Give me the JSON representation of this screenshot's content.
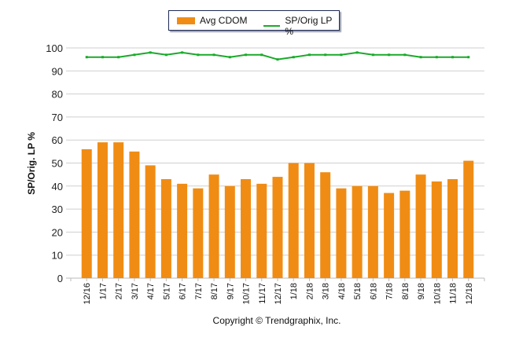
{
  "chart_data": {
    "type": "bar",
    "categories": [
      "12/16",
      "1/17",
      "2/17",
      "3/17",
      "4/17",
      "5/17",
      "6/17",
      "7/17",
      "8/17",
      "9/17",
      "10/17",
      "11/17",
      "12/17",
      "1/18",
      "2/18",
      "3/18",
      "4/18",
      "5/18",
      "6/18",
      "7/18",
      "8/18",
      "9/18",
      "10/18",
      "11/18",
      "12/18"
    ],
    "series": [
      {
        "name": "Avg CDOM",
        "type": "bar",
        "color": "#f08c14",
        "values": [
          56,
          59,
          59,
          55,
          49,
          43,
          41,
          39,
          45,
          40,
          43,
          41,
          44,
          50,
          50,
          46,
          39,
          40,
          40,
          37,
          38,
          45,
          42,
          43,
          51
        ]
      },
      {
        "name": "SP/Orig LP %",
        "type": "line",
        "color": "#1aaa2a",
        "values": [
          96,
          96,
          96,
          97,
          98,
          97,
          98,
          97,
          97,
          96,
          97,
          97,
          95,
          96,
          97,
          97,
          97,
          98,
          97,
          97,
          97,
          96,
          96,
          96,
          96
        ]
      }
    ],
    "ylabel": "SP/Orig. LP %",
    "ylim": [
      0,
      100
    ],
    "yticks": [
      0,
      10,
      20,
      30,
      40,
      50,
      60,
      70,
      80,
      90,
      100
    ],
    "grid": true,
    "legend": "top"
  },
  "footer": {
    "copyright": "Copyright © Trendgraphix, Inc."
  }
}
